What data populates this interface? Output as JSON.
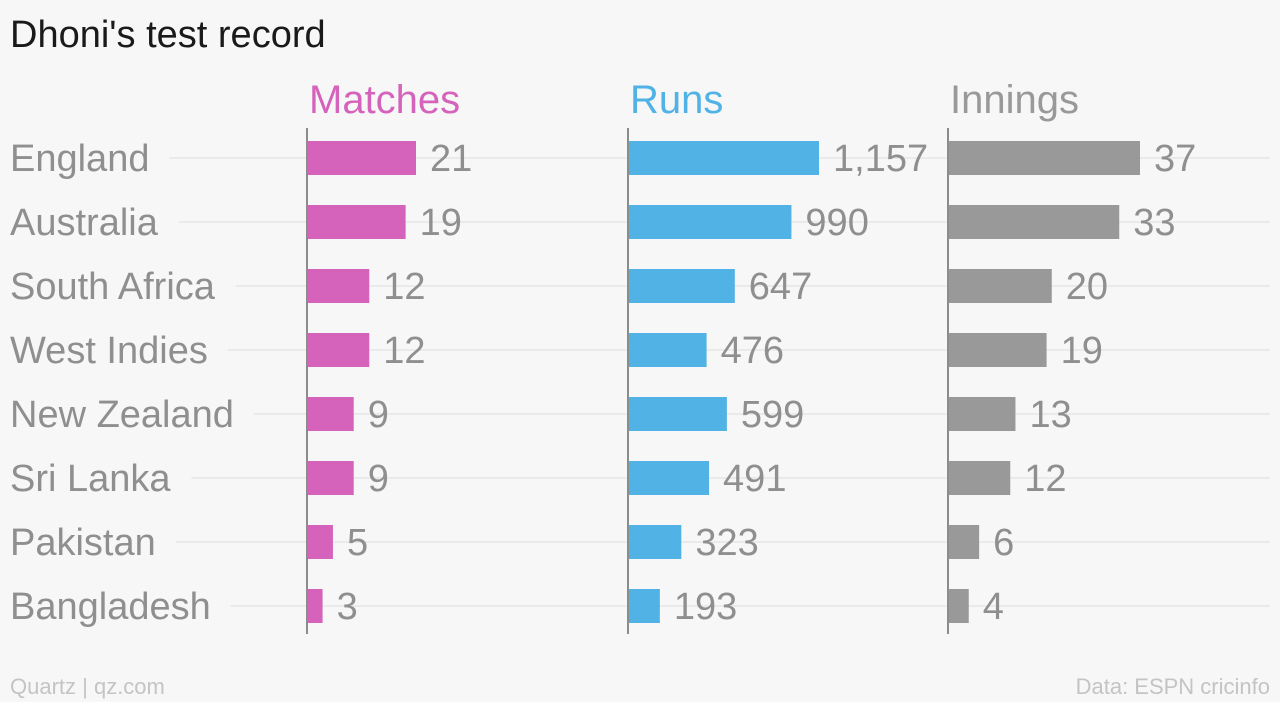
{
  "chart_data": {
    "type": "bar",
    "title": "Dhoni's test record",
    "orientation": "horizontal",
    "categories": [
      "England",
      "Australia",
      "South Africa",
      "West Indies",
      "New Zealand",
      "Sri Lanka",
      "Pakistan",
      "Bangladesh"
    ],
    "series": [
      {
        "name": "Matches",
        "color": "#d563bb",
        "values": [
          21,
          19,
          12,
          12,
          9,
          9,
          5,
          3
        ],
        "labels": [
          "21",
          "19",
          "12",
          "12",
          "9",
          "9",
          "5",
          "3"
        ],
        "max": 21
      },
      {
        "name": "Runs",
        "color": "#51b2e5",
        "values": [
          1157,
          990,
          647,
          476,
          599,
          491,
          323,
          193
        ],
        "labels": [
          "1,157",
          "990",
          "647",
          "476",
          "599",
          "491",
          "323",
          "193"
        ],
        "max": 1157
      },
      {
        "name": "Innings",
        "color": "#999999",
        "values": [
          37,
          33,
          20,
          19,
          13,
          12,
          6,
          4
        ],
        "labels": [
          "37",
          "33",
          "20",
          "19",
          "13",
          "12",
          "6",
          "4"
        ],
        "max": 37
      }
    ],
    "grid": true
  },
  "footer": {
    "left": "Quartz | qz.com",
    "right": "Data: ESPN cricinfo"
  }
}
